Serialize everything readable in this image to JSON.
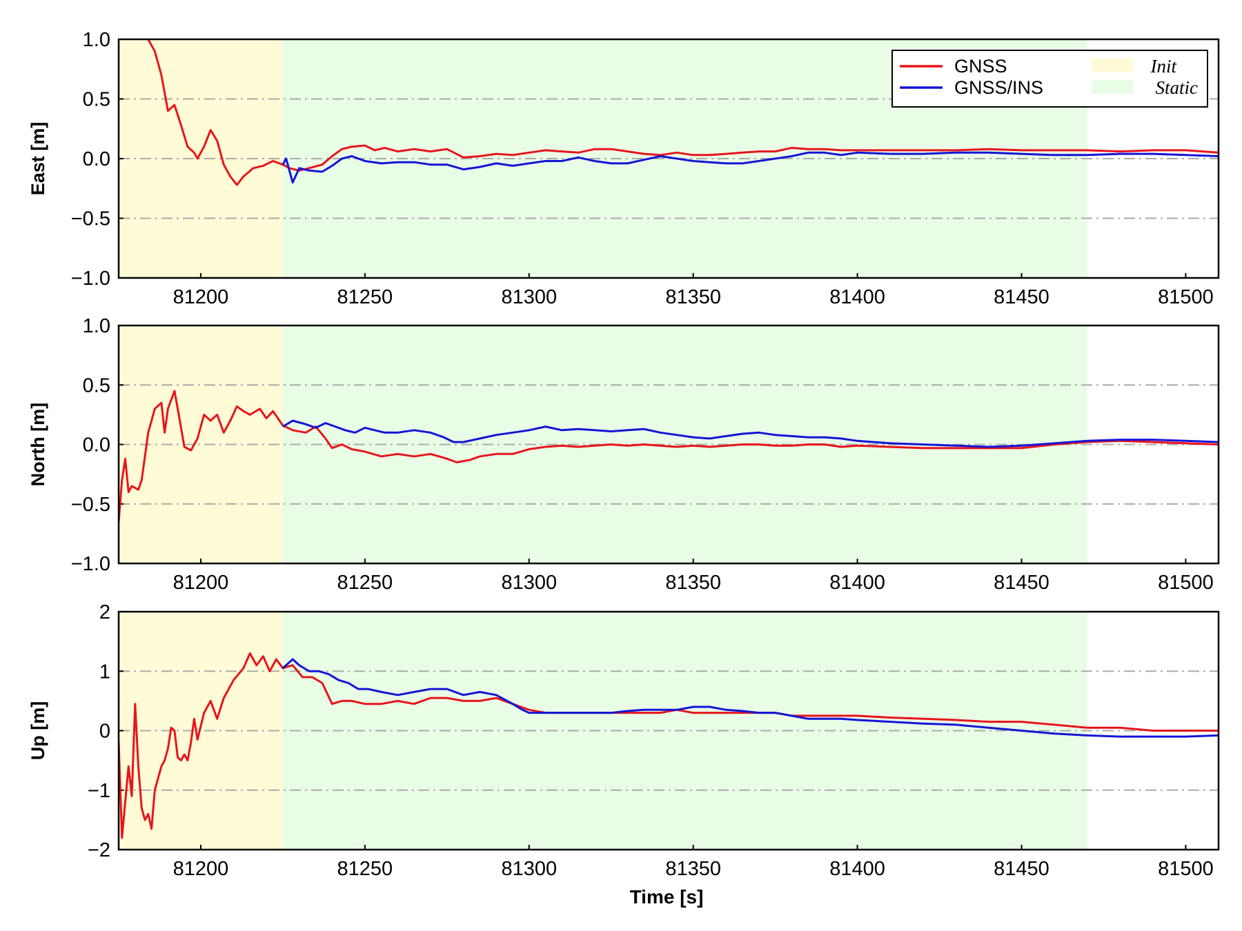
{
  "colors": {
    "gnss": "#e8141b",
    "gnss_ins": "#1414d6",
    "init_region": "#fffbd6",
    "static_region": "#e9fde6",
    "grid": "#aaaaaa"
  },
  "legend": {
    "placement": "top-right of first panel",
    "entries": [
      {
        "label": "GNSS",
        "kind": "line",
        "color": "#e8141b"
      },
      {
        "label": "GNSS/INS",
        "kind": "line",
        "color": "#1414d6"
      },
      {
        "label": "Init",
        "kind": "patch",
        "color": "#fffbd6"
      },
      {
        "label": "Static",
        "kind": "patch",
        "color": "#e9fde6"
      }
    ]
  },
  "chart_data": [
    {
      "type": "line",
      "ylabel": "East [m]",
      "xlabel": "",
      "xlim": [
        81175,
        81510
      ],
      "ylim": [
        -1.0,
        1.0
      ],
      "xticks": [
        "81200",
        "81250",
        "81300",
        "81350",
        "81400",
        "81450",
        "81500"
      ],
      "yticks": [
        "1.0",
        "0.5",
        "0.0",
        "−0.5",
        "−1.0"
      ],
      "grid": "dash-dot horizontal at y ticks",
      "regions": [
        {
          "name": "Init",
          "from": 81175,
          "to": 81225
        },
        {
          "name": "Static",
          "from": 81225,
          "to": 81470
        }
      ],
      "series": [
        {
          "name": "GNSS",
          "x": [
            81184,
            81186,
            81188,
            81190,
            81192,
            81194,
            81196,
            81198,
            81199,
            81201,
            81203,
            81205,
            81207,
            81209,
            81211,
            81213,
            81216,
            81219,
            81222,
            81225,
            81227,
            81230,
            81233,
            81237,
            81240,
            81243,
            81246,
            81250,
            81253,
            81256,
            81260,
            81265,
            81270,
            81275,
            81280,
            81285,
            81290,
            81295,
            81300,
            81305,
            81310,
            81315,
            81320,
            81325,
            81330,
            81335,
            81340,
            81345,
            81350,
            81355,
            81360,
            81365,
            81370,
            81375,
            81380,
            81385,
            81390,
            81395,
            81400,
            81410,
            81420,
            81430,
            81440,
            81450,
            81460,
            81470,
            81480,
            81490,
            81500,
            81510
          ],
          "y": [
            1.0,
            0.9,
            0.7,
            0.4,
            0.45,
            0.28,
            0.1,
            0.05,
            0.0,
            0.1,
            0.24,
            0.15,
            -0.05,
            -0.15,
            -0.22,
            -0.15,
            -0.08,
            -0.06,
            -0.02,
            -0.05,
            -0.08,
            -0.1,
            -0.08,
            -0.05,
            0.02,
            0.08,
            0.1,
            0.11,
            0.07,
            0.09,
            0.06,
            0.08,
            0.06,
            0.08,
            0.01,
            0.02,
            0.04,
            0.03,
            0.05,
            0.07,
            0.06,
            0.05,
            0.08,
            0.08,
            0.06,
            0.04,
            0.03,
            0.05,
            0.03,
            0.03,
            0.04,
            0.05,
            0.06,
            0.06,
            0.09,
            0.08,
            0.08,
            0.07,
            0.07,
            0.07,
            0.07,
            0.07,
            0.08,
            0.07,
            0.07,
            0.07,
            0.06,
            0.07,
            0.07,
            0.05
          ]
        },
        {
          "name": "GNSS/INS",
          "x": [
            81225,
            81226,
            81227,
            81228,
            81230,
            81233,
            81237,
            81240,
            81243,
            81246,
            81250,
            81255,
            81260,
            81265,
            81270,
            81275,
            81280,
            81285,
            81290,
            81295,
            81300,
            81305,
            81310,
            81315,
            81320,
            81325,
            81330,
            81335,
            81340,
            81345,
            81350,
            81355,
            81360,
            81365,
            81370,
            81375,
            81380,
            81385,
            81390,
            81395,
            81400,
            81410,
            81420,
            81430,
            81440,
            81450,
            81460,
            81470,
            81480,
            81490,
            81500,
            81510
          ],
          "y": [
            -0.05,
            0.0,
            -0.1,
            -0.2,
            -0.08,
            -0.1,
            -0.11,
            -0.06,
            0.0,
            0.02,
            -0.02,
            -0.04,
            -0.03,
            -0.03,
            -0.05,
            -0.05,
            -0.09,
            -0.07,
            -0.04,
            -0.06,
            -0.04,
            -0.02,
            -0.02,
            0.01,
            -0.02,
            -0.04,
            -0.04,
            -0.01,
            0.02,
            0.0,
            -0.02,
            -0.03,
            -0.04,
            -0.04,
            -0.02,
            0.0,
            0.02,
            0.05,
            0.05,
            0.03,
            0.05,
            0.04,
            0.04,
            0.05,
            0.05,
            0.04,
            0.03,
            0.03,
            0.04,
            0.04,
            0.03,
            0.02
          ]
        }
      ]
    },
    {
      "type": "line",
      "ylabel": "North [m]",
      "xlabel": "",
      "xlim": [
        81175,
        81510
      ],
      "ylim": [
        -1.0,
        1.0
      ],
      "xticks": [
        "81200",
        "81250",
        "81300",
        "81350",
        "81400",
        "81450",
        "81500"
      ],
      "yticks": [
        "1.0",
        "0.5",
        "0.0",
        "−0.5",
        "−1.0"
      ],
      "grid": "dash-dot horizontal at y ticks",
      "regions": [
        {
          "name": "Init",
          "from": 81175,
          "to": 81225
        },
        {
          "name": "Static",
          "from": 81225,
          "to": 81470
        }
      ],
      "series": [
        {
          "name": "GNSS",
          "x": [
            81175,
            81176,
            81177,
            81178,
            81179,
            81181,
            81182,
            81184,
            81185,
            81186,
            81188,
            81189,
            81190,
            81192,
            81193,
            81195,
            81197,
            81199,
            81201,
            81203,
            81205,
            81207,
            81209,
            81211,
            81213,
            81215,
            81218,
            81220,
            81222,
            81225,
            81228,
            81232,
            81235,
            81238,
            81240,
            81243,
            81246,
            81250,
            81255,
            81260,
            81265,
            81270,
            81275,
            81278,
            81282,
            81285,
            81290,
            81295,
            81300,
            81305,
            81310,
            81315,
            81320,
            81325,
            81330,
            81335,
            81340,
            81345,
            81350,
            81355,
            81360,
            81365,
            81370,
            81375,
            81380,
            81385,
            81390,
            81395,
            81400,
            81410,
            81420,
            81430,
            81440,
            81450,
            81460,
            81470,
            81480,
            81490,
            81500,
            81510
          ],
          "y": [
            -0.65,
            -0.3,
            -0.12,
            -0.4,
            -0.35,
            -0.38,
            -0.3,
            0.1,
            0.2,
            0.3,
            0.35,
            0.1,
            0.3,
            0.45,
            0.3,
            -0.02,
            -0.05,
            0.05,
            0.25,
            0.2,
            0.25,
            0.1,
            0.2,
            0.32,
            0.28,
            0.25,
            0.3,
            0.22,
            0.28,
            0.16,
            0.12,
            0.1,
            0.15,
            0.05,
            -0.03,
            0.0,
            -0.04,
            -0.06,
            -0.1,
            -0.08,
            -0.1,
            -0.08,
            -0.12,
            -0.15,
            -0.13,
            -0.1,
            -0.08,
            -0.08,
            -0.04,
            -0.02,
            -0.01,
            -0.02,
            -0.01,
            0.0,
            -0.01,
            0.0,
            -0.01,
            -0.02,
            -0.01,
            -0.02,
            -0.01,
            0.0,
            0.0,
            -0.01,
            -0.01,
            0.0,
            0.0,
            -0.02,
            -0.01,
            -0.02,
            -0.03,
            -0.03,
            -0.03,
            -0.03,
            0.0,
            0.02,
            0.03,
            0.02,
            0.01,
            0.0
          ]
        },
        {
          "name": "GNSS/INS",
          "x": [
            81225,
            81228,
            81232,
            81235,
            81238,
            81241,
            81244,
            81247,
            81250,
            81253,
            81256,
            81260,
            81265,
            81270,
            81274,
            81277,
            81280,
            81285,
            81290,
            81295,
            81300,
            81305,
            81310,
            81315,
            81320,
            81325,
            81330,
            81335,
            81340,
            81345,
            81350,
            81355,
            81360,
            81365,
            81370,
            81375,
            81380,
            81385,
            81390,
            81395,
            81400,
            81410,
            81420,
            81430,
            81440,
            81450,
            81460,
            81470,
            81480,
            81490,
            81500,
            81510
          ],
          "y": [
            0.15,
            0.2,
            0.17,
            0.14,
            0.18,
            0.15,
            0.12,
            0.1,
            0.14,
            0.12,
            0.1,
            0.1,
            0.12,
            0.1,
            0.06,
            0.02,
            0.02,
            0.05,
            0.08,
            0.1,
            0.12,
            0.15,
            0.12,
            0.13,
            0.12,
            0.11,
            0.12,
            0.13,
            0.1,
            0.08,
            0.06,
            0.05,
            0.07,
            0.09,
            0.1,
            0.08,
            0.07,
            0.06,
            0.06,
            0.05,
            0.03,
            0.01,
            0.0,
            -0.01,
            -0.02,
            -0.01,
            0.01,
            0.03,
            0.04,
            0.04,
            0.03,
            0.02
          ]
        }
      ]
    },
    {
      "type": "line",
      "ylabel": "Up [m]",
      "xlabel": "Time [s]",
      "xlim": [
        81175,
        81510
      ],
      "ylim": [
        -2,
        2
      ],
      "xticks": [
        "81200",
        "81250",
        "81300",
        "81350",
        "81400",
        "81450",
        "81500"
      ],
      "yticks": [
        "2",
        "1",
        "0",
        "−1",
        "−2"
      ],
      "grid": "dash-dot horizontal at y ticks",
      "regions": [
        {
          "name": "Init",
          "from": 81175,
          "to": 81225
        },
        {
          "name": "Static",
          "from": 81225,
          "to": 81470
        }
      ],
      "series": [
        {
          "name": "GNSS",
          "x": [
            81175,
            81176,
            81177,
            81178,
            81179,
            81180,
            81181,
            81182,
            81183,
            81184,
            81185,
            81186,
            81187,
            81188,
            81189,
            81190,
            81191,
            81192,
            81193,
            81194,
            81195,
            81196,
            81197,
            81198,
            81199,
            81201,
            81203,
            81205,
            81207,
            81210,
            81213,
            81215,
            81217,
            81219,
            81221,
            81223,
            81225,
            81228,
            81231,
            81234,
            81237,
            81240,
            81243,
            81246,
            81250,
            81255,
            81260,
            81265,
            81270,
            81275,
            81280,
            81285,
            81290,
            81295,
            81300,
            81305,
            81310,
            81315,
            81320,
            81325,
            81330,
            81335,
            81340,
            81345,
            81350,
            81355,
            81360,
            81365,
            81370,
            81375,
            81380,
            81385,
            81390,
            81395,
            81400,
            81410,
            81420,
            81430,
            81440,
            81450,
            81460,
            81470,
            81480,
            81490,
            81500,
            81510
          ],
          "y": [
            -0.2,
            -1.8,
            -1.2,
            -0.6,
            -1.1,
            0.45,
            -0.6,
            -1.3,
            -1.5,
            -1.4,
            -1.65,
            -1.0,
            -0.8,
            -0.6,
            -0.5,
            -0.3,
            0.05,
            0.0,
            -0.45,
            -0.5,
            -0.4,
            -0.5,
            -0.2,
            0.2,
            -0.15,
            0.3,
            0.5,
            0.2,
            0.55,
            0.85,
            1.05,
            1.3,
            1.1,
            1.25,
            1.0,
            1.2,
            1.05,
            1.1,
            0.9,
            0.9,
            0.8,
            0.45,
            0.5,
            0.5,
            0.45,
            0.45,
            0.5,
            0.45,
            0.55,
            0.55,
            0.5,
            0.5,
            0.55,
            0.45,
            0.35,
            0.3,
            0.3,
            0.3,
            0.3,
            0.3,
            0.3,
            0.3,
            0.3,
            0.35,
            0.3,
            0.3,
            0.3,
            0.3,
            0.3,
            0.3,
            0.25,
            0.25,
            0.25,
            0.25,
            0.25,
            0.22,
            0.2,
            0.18,
            0.15,
            0.15,
            0.1,
            0.05,
            0.05,
            0.0,
            0.0,
            0.0
          ]
        },
        {
          "name": "GNSS/INS",
          "x": [
            81225,
            81228,
            81230,
            81233,
            81236,
            81239,
            81242,
            81245,
            81248,
            81251,
            81255,
            81260,
            81265,
            81270,
            81275,
            81280,
            81285,
            81290,
            81295,
            81298,
            81300,
            81305,
            81310,
            81315,
            81320,
            81325,
            81330,
            81335,
            81340,
            81345,
            81350,
            81355,
            81360,
            81365,
            81370,
            81375,
            81380,
            81385,
            81390,
            81395,
            81400,
            81410,
            81420,
            81430,
            81440,
            81450,
            81460,
            81470,
            81480,
            81490,
            81500,
            81510
          ],
          "y": [
            1.05,
            1.2,
            1.1,
            1.0,
            1.0,
            0.95,
            0.85,
            0.8,
            0.7,
            0.7,
            0.65,
            0.6,
            0.65,
            0.7,
            0.7,
            0.6,
            0.65,
            0.6,
            0.45,
            0.35,
            0.3,
            0.3,
            0.3,
            0.3,
            0.3,
            0.3,
            0.33,
            0.35,
            0.35,
            0.35,
            0.4,
            0.4,
            0.35,
            0.33,
            0.3,
            0.3,
            0.25,
            0.2,
            0.2,
            0.2,
            0.18,
            0.15,
            0.12,
            0.1,
            0.05,
            0.0,
            -0.05,
            -0.08,
            -0.1,
            -0.1,
            -0.1,
            -0.08
          ]
        }
      ]
    }
  ]
}
